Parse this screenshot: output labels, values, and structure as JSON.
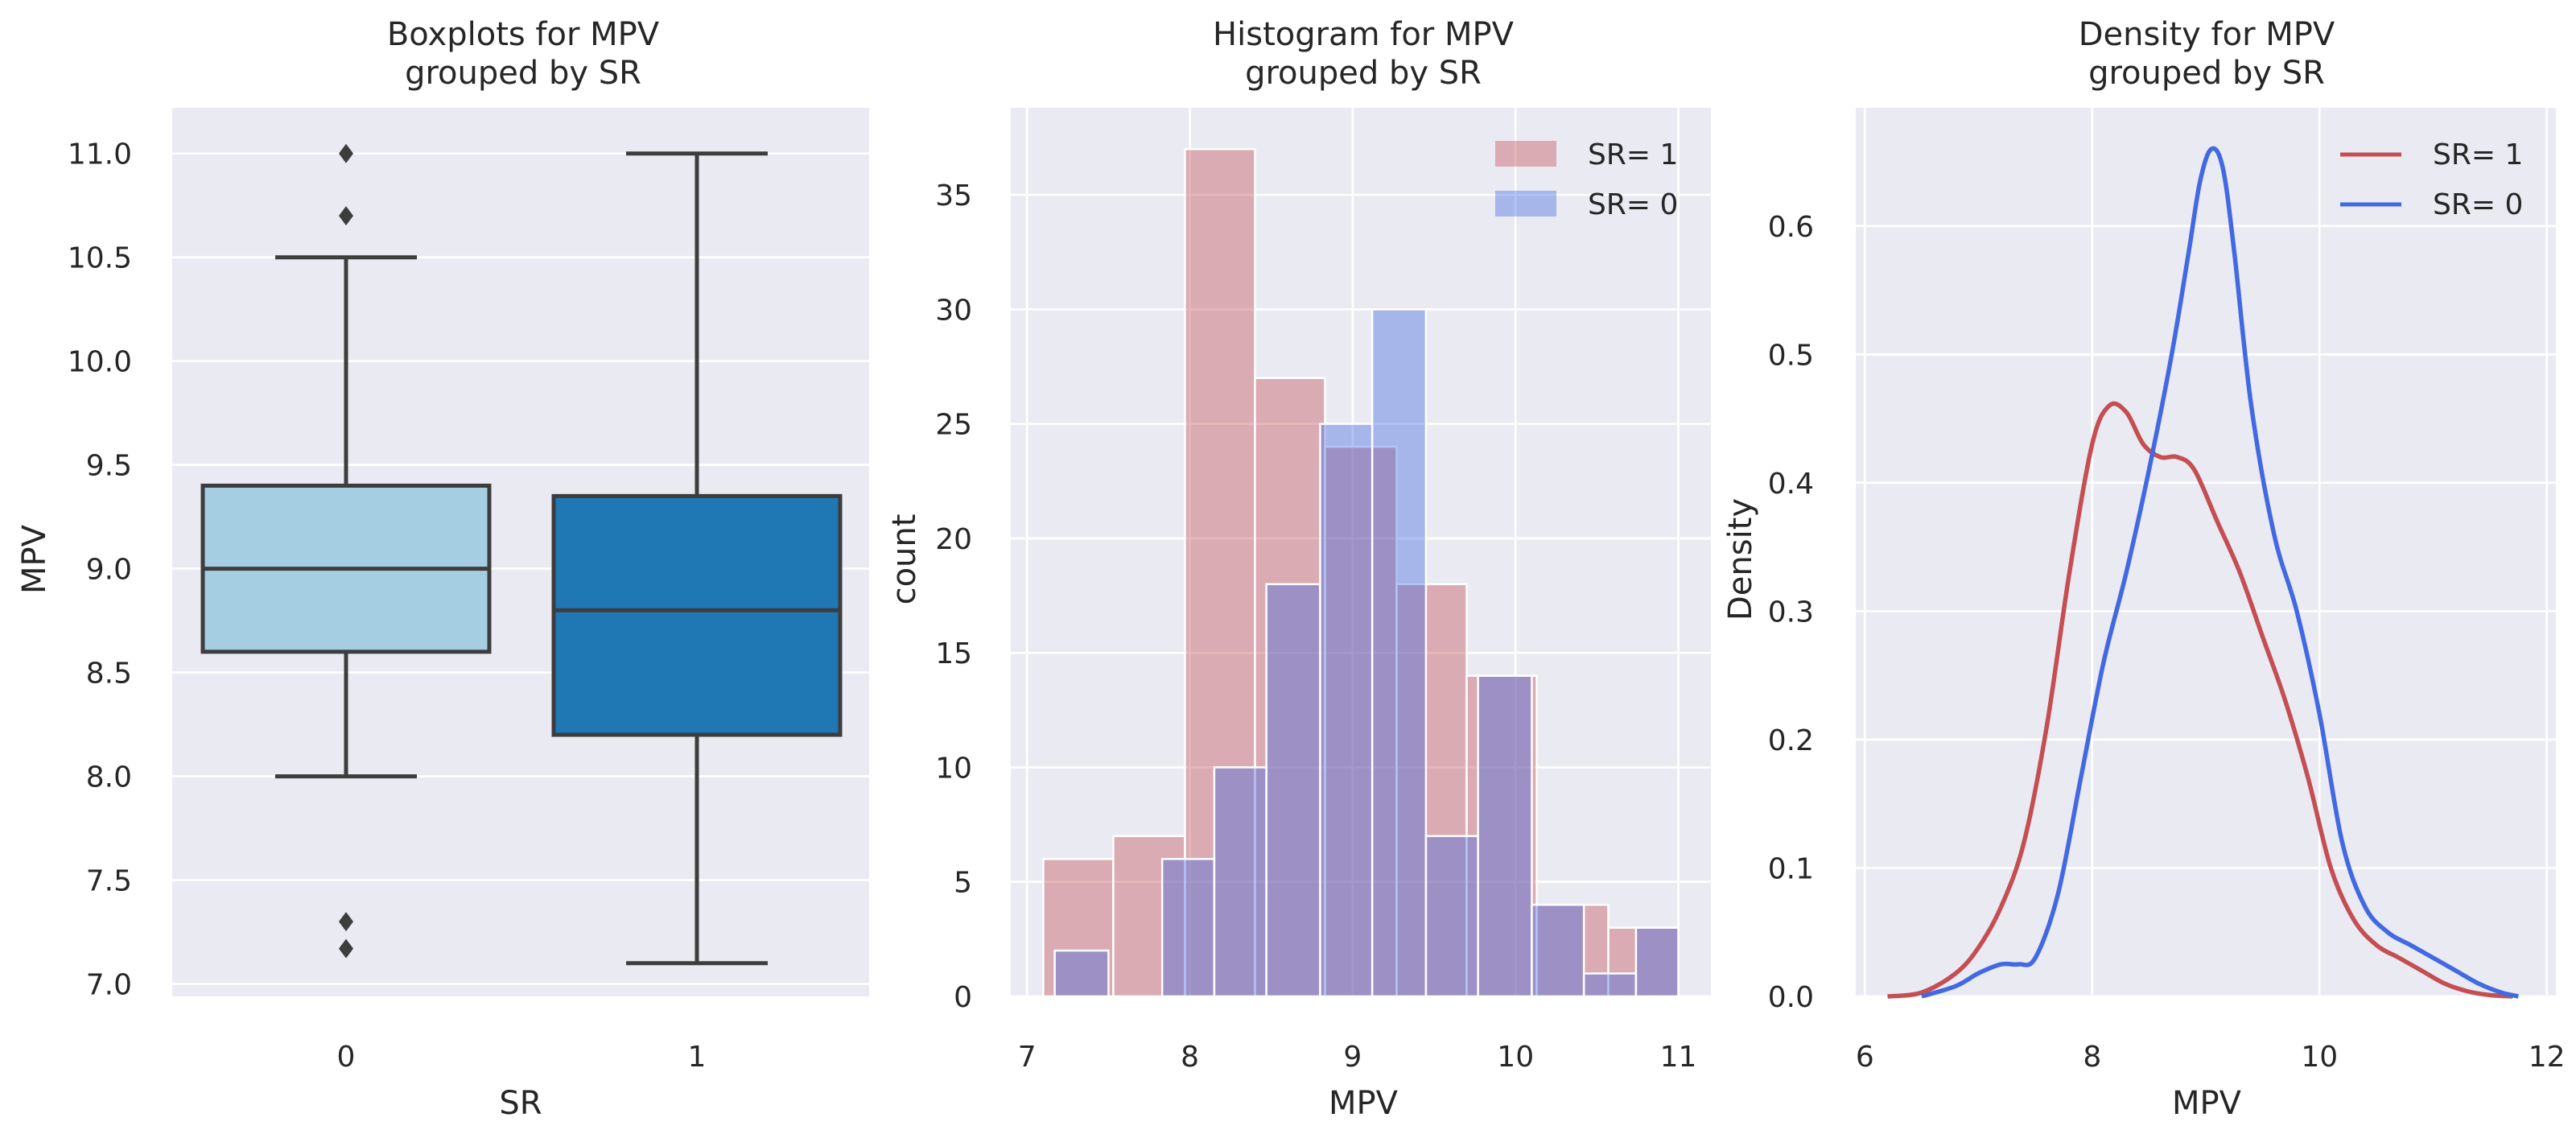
{
  "chart_data": [
    {
      "type": "box",
      "title_line1": "Boxplots for MPV",
      "title_line2": "grouped by SR",
      "xlabel": "SR",
      "ylabel": "MPV",
      "ylim": [
        6.94,
        11.22
      ],
      "yticks": [
        7.0,
        7.5,
        8.0,
        8.5,
        9.0,
        9.5,
        10.0,
        10.5,
        11.0
      ],
      "ytick_labels": [
        "7.0",
        "7.5",
        "8.0",
        "8.5",
        "9.0",
        "9.5",
        "10.0",
        "10.5",
        "11.0"
      ],
      "categories": [
        "0",
        "1"
      ],
      "boxes": [
        {
          "name": "0",
          "whisker_low": 8.0,
          "q1": 8.6,
          "median": 9.0,
          "q3": 9.4,
          "whisker_high": 10.5,
          "outliers": [
            7.17,
            7.3,
            10.7,
            11.0
          ],
          "color": "#a6cee3"
        },
        {
          "name": "1",
          "whisker_low": 7.1,
          "q1": 8.2,
          "median": 8.8,
          "q3": 9.35,
          "whisker_high": 11.0,
          "outliers": [],
          "color": "#1f78b4"
        }
      ]
    },
    {
      "type": "histogram",
      "title_line1": "Histogram for MPV",
      "title_line2": "grouped by SR",
      "xlabel": "MPV",
      "ylabel": "count",
      "xlim": [
        6.9,
        11.2
      ],
      "ylim": [
        0,
        38.8
      ],
      "xticks": [
        7,
        8,
        9,
        10,
        11
      ],
      "xtick_labels": [
        "7",
        "8",
        "9",
        "10",
        "11"
      ],
      "yticks": [
        0,
        5,
        10,
        15,
        20,
        25,
        30,
        35
      ],
      "ytick_labels": [
        "0",
        "5",
        "10",
        "15",
        "20",
        "25",
        "30",
        "35"
      ],
      "legend": [
        "SR= 1",
        "SR= 0"
      ],
      "series": [
        {
          "name": "SR= 1",
          "color": "#c44e52",
          "bins": [
            [
              7.1,
              7.53,
              6
            ],
            [
              7.53,
              7.97,
              7
            ],
            [
              7.97,
              8.4,
              37
            ],
            [
              8.4,
              8.83,
              27
            ],
            [
              8.83,
              9.27,
              24
            ],
            [
              9.27,
              9.7,
              18
            ],
            [
              9.7,
              10.13,
              14
            ],
            [
              10.13,
              10.57,
              4
            ],
            [
              10.57,
              11.0,
              3
            ]
          ]
        },
        {
          "name": "SR= 0",
          "color": "#4169e1",
          "bins": [
            [
              7.17,
              7.5,
              2
            ],
            [
              7.5,
              7.83,
              0
            ],
            [
              7.83,
              8.15,
              6
            ],
            [
              8.15,
              8.47,
              10
            ],
            [
              8.47,
              8.8,
              18
            ],
            [
              8.8,
              9.12,
              25
            ],
            [
              9.12,
              9.45,
              30
            ],
            [
              9.45,
              9.77,
              7
            ],
            [
              9.77,
              10.1,
              14
            ],
            [
              10.1,
              10.42,
              4
            ],
            [
              10.42,
              10.74,
              1
            ],
            [
              10.74,
              11.0,
              3
            ]
          ]
        }
      ]
    },
    {
      "type": "line",
      "title_line1": "Density for MPV",
      "title_line2": "grouped by SR",
      "xlabel": "MPV",
      "ylabel": "Density",
      "xlim": [
        5.92,
        12.08
      ],
      "ylim": [
        0,
        0.692
      ],
      "xticks": [
        6,
        8,
        10,
        12
      ],
      "xtick_labels": [
        "6",
        "8",
        "10",
        "12"
      ],
      "yticks": [
        0.0,
        0.1,
        0.2,
        0.3,
        0.4,
        0.5,
        0.6
      ],
      "ytick_labels": [
        "0.0",
        "0.1",
        "0.2",
        "0.3",
        "0.4",
        "0.5",
        "0.6"
      ],
      "legend": [
        "SR= 1",
        "SR= 0"
      ],
      "series": [
        {
          "name": "SR= 1",
          "color": "#c44e52",
          "x": [
            6.2,
            6.5,
            6.8,
            7.0,
            7.2,
            7.4,
            7.6,
            7.8,
            8.0,
            8.15,
            8.3,
            8.45,
            8.6,
            8.75,
            8.9,
            9.1,
            9.3,
            9.5,
            9.7,
            9.9,
            10.1,
            10.3,
            10.5,
            10.7,
            10.9,
            11.1,
            11.3,
            11.5,
            11.7
          ],
          "y": [
            0.0,
            0.003,
            0.018,
            0.038,
            0.07,
            0.12,
            0.21,
            0.33,
            0.43,
            0.46,
            0.455,
            0.43,
            0.42,
            0.42,
            0.41,
            0.37,
            0.33,
            0.28,
            0.23,
            0.17,
            0.1,
            0.06,
            0.04,
            0.03,
            0.02,
            0.01,
            0.004,
            0.001,
            0.0
          ]
        },
        {
          "name": "SR= 0",
          "color": "#4169e1",
          "x": [
            6.5,
            6.8,
            7.0,
            7.2,
            7.35,
            7.5,
            7.7,
            7.9,
            8.1,
            8.3,
            8.5,
            8.7,
            8.85,
            8.95,
            9.05,
            9.15,
            9.25,
            9.4,
            9.6,
            9.8,
            10.0,
            10.2,
            10.4,
            10.6,
            10.8,
            11.0,
            11.2,
            11.4,
            11.6,
            11.75
          ],
          "y": [
            0.0,
            0.008,
            0.018,
            0.025,
            0.025,
            0.03,
            0.08,
            0.17,
            0.26,
            0.33,
            0.41,
            0.5,
            0.58,
            0.635,
            0.66,
            0.645,
            0.58,
            0.46,
            0.36,
            0.3,
            0.22,
            0.12,
            0.07,
            0.05,
            0.04,
            0.03,
            0.02,
            0.01,
            0.003,
            0.0
          ]
        }
      ]
    }
  ]
}
